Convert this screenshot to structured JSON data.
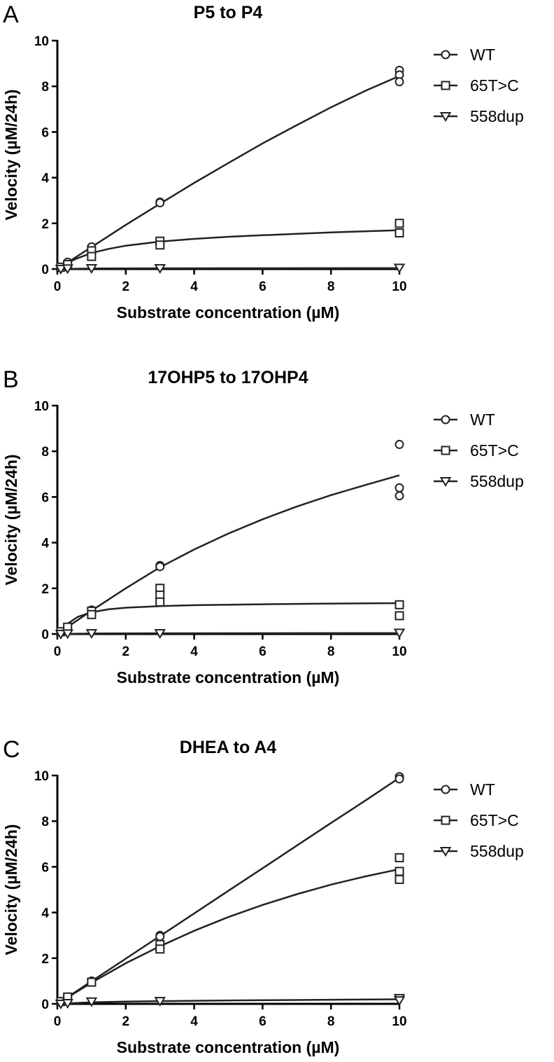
{
  "chart_data": [
    {
      "panel_letter": "A",
      "type": "scatter",
      "title": "P5 to P4",
      "xlabel": "Substrate concentration (µM)",
      "ylabel": "Velocity (µM/24h)",
      "xlim": [
        0,
        10
      ],
      "ylim": [
        0,
        10
      ],
      "xticks": [
        "0",
        "2",
        "4",
        "6",
        "8",
        "10"
      ],
      "yticks": [
        "0",
        "2",
        "4",
        "6",
        "8",
        "10"
      ],
      "legend_position": "top-right",
      "series": [
        {
          "name": "WT",
          "marker": "circle",
          "points": [
            [
              0.1,
              0.05
            ],
            [
              0.3,
              0.3
            ],
            [
              1,
              0.97
            ],
            [
              3,
              2.93
            ],
            [
              3,
              2.9
            ],
            [
              10,
              8.7
            ],
            [
              10,
              8.5
            ],
            [
              10,
              8.2
            ]
          ],
          "curve": [
            [
              0,
              0
            ],
            [
              0.3,
              0.29
            ],
            [
              1,
              0.96
            ],
            [
              2,
              1.93
            ],
            [
              3,
              2.86
            ],
            [
              4,
              3.77
            ],
            [
              5,
              4.64
            ],
            [
              6,
              5.5
            ],
            [
              7,
              6.3
            ],
            [
              8,
              7.08
            ],
            [
              9,
              7.8
            ],
            [
              10,
              8.45
            ]
          ]
        },
        {
          "name": "65T>C",
          "marker": "square",
          "points": [
            [
              0.1,
              0.08
            ],
            [
              0.3,
              0.2
            ],
            [
              1,
              0.8
            ],
            [
              1,
              0.55
            ],
            [
              3,
              1.22
            ],
            [
              3,
              1.05
            ],
            [
              10,
              2.0
            ],
            [
              10,
              1.58
            ]
          ],
          "curve": [
            [
              0,
              0
            ],
            [
              0.3,
              0.28
            ],
            [
              0.6,
              0.48
            ],
            [
              1,
              0.7
            ],
            [
              1.5,
              0.88
            ],
            [
              2,
              1.02
            ],
            [
              3,
              1.2
            ],
            [
              4,
              1.32
            ],
            [
              5,
              1.41
            ],
            [
              6,
              1.48
            ],
            [
              8,
              1.6
            ],
            [
              10,
              1.7
            ]
          ]
        },
        {
          "name": "558dup",
          "marker": "triangle",
          "points": [
            [
              0.1,
              0.0
            ],
            [
              0.3,
              0.02
            ],
            [
              1,
              0.03
            ],
            [
              3,
              0.03
            ],
            [
              10,
              0.05
            ]
          ],
          "curve": [
            [
              0,
              0
            ],
            [
              1,
              0.02
            ],
            [
              3,
              0.03
            ],
            [
              10,
              0.04
            ]
          ]
        }
      ]
    },
    {
      "panel_letter": "B",
      "type": "scatter",
      "title": "17OHP5 to 17OHP4",
      "xlabel": "Substrate concentration (µM)",
      "ylabel": "Velocity (µM/24h)",
      "xlim": [
        0,
        10
      ],
      "ylim": [
        0,
        10
      ],
      "xticks": [
        "0",
        "2",
        "4",
        "6",
        "8",
        "10"
      ],
      "yticks": [
        "0",
        "2",
        "4",
        "6",
        "8",
        "10"
      ],
      "legend_position": "top-right",
      "series": [
        {
          "name": "WT",
          "marker": "circle",
          "points": [
            [
              0.1,
              0.1
            ],
            [
              0.3,
              0.3
            ],
            [
              1,
              1.05
            ],
            [
              3,
              3.0
            ],
            [
              3,
              2.95
            ],
            [
              10,
              8.3
            ],
            [
              10,
              6.4
            ],
            [
              10,
              6.05
            ]
          ],
          "curve": [
            [
              0,
              0
            ],
            [
              0.3,
              0.31
            ],
            [
              1,
              1.02
            ],
            [
              2,
              2.0
            ],
            [
              3,
              2.92
            ],
            [
              4,
              3.7
            ],
            [
              5,
              4.4
            ],
            [
              6,
              5.02
            ],
            [
              7,
              5.58
            ],
            [
              8,
              6.08
            ],
            [
              9,
              6.52
            ],
            [
              10,
              6.95
            ]
          ]
        },
        {
          "name": "65T>C",
          "marker": "square",
          "points": [
            [
              0.1,
              0.1
            ],
            [
              0.3,
              0.3
            ],
            [
              1,
              1.0
            ],
            [
              1,
              0.85
            ],
            [
              3,
              2.0
            ],
            [
              3,
              1.7
            ],
            [
              3,
              1.4
            ],
            [
              10,
              1.28
            ],
            [
              10,
              0.8
            ]
          ],
          "curve": [
            [
              0,
              0
            ],
            [
              0.3,
              0.45
            ],
            [
              0.6,
              0.75
            ],
            [
              1,
              0.95
            ],
            [
              1.5,
              1.08
            ],
            [
              2,
              1.15
            ],
            [
              3,
              1.22
            ],
            [
              4,
              1.26
            ],
            [
              6,
              1.3
            ],
            [
              8,
              1.33
            ],
            [
              10,
              1.35
            ]
          ]
        },
        {
          "name": "558dup",
          "marker": "triangle",
          "points": [
            [
              0.1,
              0.0
            ],
            [
              0.3,
              0.02
            ],
            [
              1,
              0.03
            ],
            [
              3,
              0.03
            ],
            [
              10,
              0.05
            ]
          ],
          "curve": [
            [
              0,
              0
            ],
            [
              1,
              0.02
            ],
            [
              3,
              0.03
            ],
            [
              10,
              0.04
            ]
          ]
        }
      ]
    },
    {
      "panel_letter": "C",
      "type": "scatter",
      "title": "DHEA to A4",
      "xlabel": "Substrate concentration (µM)",
      "ylabel": "Velocity (µM/24h)",
      "xlim": [
        0,
        10
      ],
      "ylim": [
        0,
        10
      ],
      "xticks": [
        "0",
        "2",
        "4",
        "6",
        "8",
        "10"
      ],
      "yticks": [
        "0",
        "2",
        "4",
        "6",
        "8",
        "10"
      ],
      "legend_position": "top-right",
      "series": [
        {
          "name": "WT",
          "marker": "circle",
          "points": [
            [
              0.1,
              0.1
            ],
            [
              0.3,
              0.3
            ],
            [
              1,
              1.0
            ],
            [
              3,
              3.0
            ],
            [
              3,
              2.95
            ],
            [
              10,
              9.95
            ],
            [
              10,
              9.85
            ]
          ],
          "curve": [
            [
              0,
              0
            ],
            [
              1,
              0.99
            ],
            [
              2,
              1.98
            ],
            [
              3,
              2.97
            ],
            [
              4,
              3.96
            ],
            [
              5,
              4.95
            ],
            [
              6,
              5.94
            ],
            [
              7,
              6.93
            ],
            [
              8,
              7.92
            ],
            [
              9,
              8.9
            ],
            [
              10,
              9.9
            ]
          ]
        },
        {
          "name": "65T>C",
          "marker": "square",
          "points": [
            [
              0.1,
              0.1
            ],
            [
              0.3,
              0.3
            ],
            [
              1,
              0.95
            ],
            [
              3,
              2.6
            ],
            [
              3,
              2.4
            ],
            [
              10,
              6.4
            ],
            [
              10,
              5.8
            ],
            [
              10,
              5.45
            ]
          ],
          "curve": [
            [
              0,
              0
            ],
            [
              1,
              0.93
            ],
            [
              2,
              1.78
            ],
            [
              3,
              2.52
            ],
            [
              4,
              3.2
            ],
            [
              5,
              3.8
            ],
            [
              6,
              4.33
            ],
            [
              7,
              4.8
            ],
            [
              8,
              5.22
            ],
            [
              9,
              5.58
            ],
            [
              10,
              5.9
            ]
          ]
        },
        {
          "name": "558dup",
          "marker": "triangle",
          "points": [
            [
              0.1,
              0.0
            ],
            [
              0.3,
              0.03
            ],
            [
              1,
              0.1
            ],
            [
              3,
              0.12
            ],
            [
              10,
              0.25
            ],
            [
              10,
              0.15
            ]
          ],
          "curve": [
            [
              0,
              0
            ],
            [
              1,
              0.07
            ],
            [
              2,
              0.1
            ],
            [
              3,
              0.12
            ],
            [
              5,
              0.15
            ],
            [
              7,
              0.17
            ],
            [
              10,
              0.2
            ]
          ]
        }
      ]
    }
  ]
}
